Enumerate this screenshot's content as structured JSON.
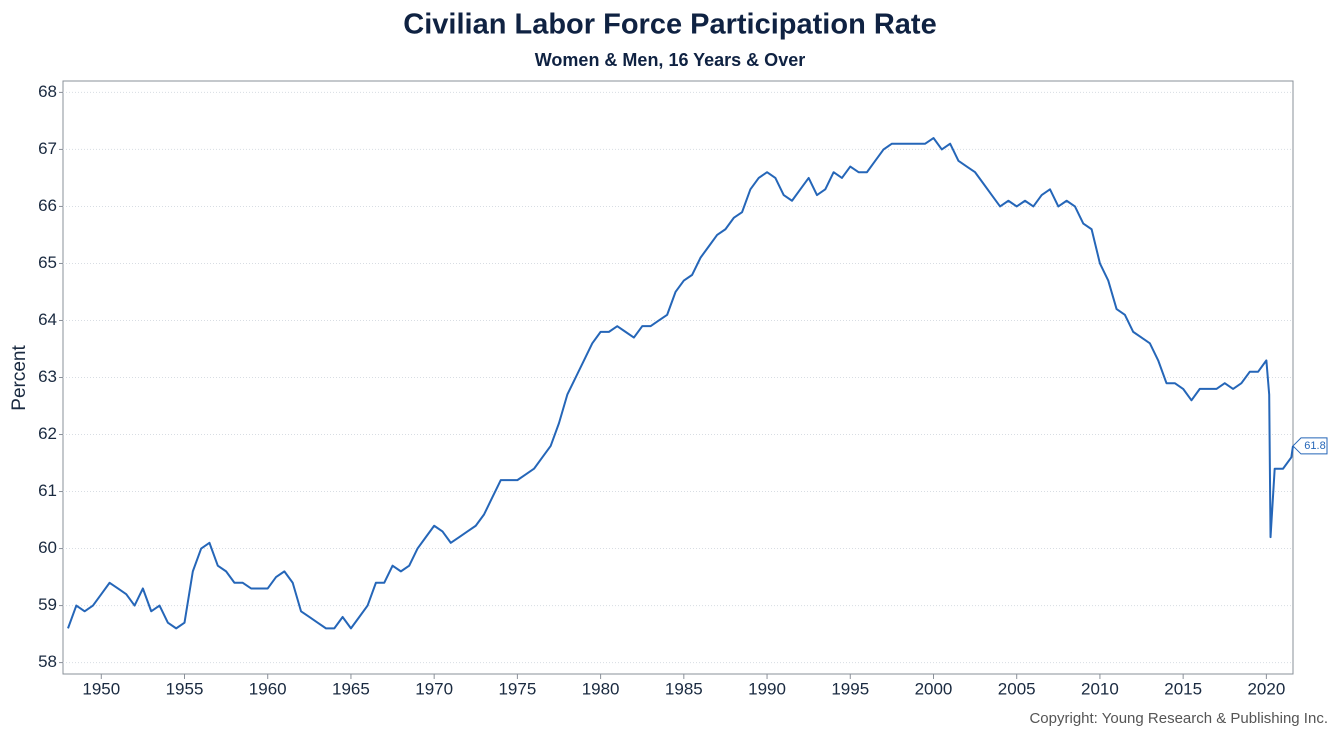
{
  "chart_data": {
    "type": "line",
    "title": "Civilian Labor Force Participation Rate",
    "subtitle": "Women & Men, 16 Years & Over",
    "y_label": "Percent",
    "copyright": "Copyright: Young Research & Publishing Inc.",
    "color": "#2566b8",
    "grid": true,
    "xlim": [
      1947.7,
      2021.6
    ],
    "ylim": [
      57.8,
      68.2
    ],
    "xticks": [
      1950,
      1955,
      1960,
      1965,
      1970,
      1975,
      1980,
      1985,
      1990,
      1995,
      2000,
      2005,
      2010,
      2015,
      2020
    ],
    "yticks": [
      58,
      59,
      60,
      61,
      62,
      63,
      64,
      65,
      66,
      67,
      68
    ],
    "x": [
      1948.0,
      1948.5,
      1949.0,
      1949.5,
      1950.0,
      1950.5,
      1951.0,
      1951.5,
      1952.0,
      1952.5,
      1953.0,
      1953.5,
      1954.0,
      1954.5,
      1955.0,
      1955.5,
      1956.0,
      1956.5,
      1957.0,
      1957.5,
      1958.0,
      1958.5,
      1959.0,
      1959.5,
      1960.0,
      1960.5,
      1961.0,
      1961.5,
      1962.0,
      1962.5,
      1963.0,
      1963.5,
      1964.0,
      1964.5,
      1965.0,
      1965.5,
      1966.0,
      1966.5,
      1967.0,
      1967.5,
      1968.0,
      1968.5,
      1969.0,
      1969.5,
      1970.0,
      1970.5,
      1971.0,
      1971.5,
      1972.0,
      1972.5,
      1973.0,
      1973.5,
      1974.0,
      1974.5,
      1975.0,
      1975.5,
      1976.0,
      1976.5,
      1977.0,
      1977.5,
      1978.0,
      1978.5,
      1979.0,
      1979.5,
      1980.0,
      1980.5,
      1981.0,
      1981.5,
      1982.0,
      1982.5,
      1983.0,
      1983.5,
      1984.0,
      1984.5,
      1985.0,
      1985.5,
      1986.0,
      1986.5,
      1987.0,
      1987.5,
      1988.0,
      1988.5,
      1989.0,
      1989.5,
      1990.0,
      1990.5,
      1991.0,
      1991.5,
      1992.0,
      1992.5,
      1993.0,
      1993.5,
      1994.0,
      1994.5,
      1995.0,
      1995.5,
      1996.0,
      1996.5,
      1997.0,
      1997.5,
      1998.0,
      1998.5,
      1999.0,
      1999.5,
      2000.0,
      2000.5,
      2001.0,
      2001.5,
      2002.0,
      2002.5,
      2003.0,
      2003.5,
      2004.0,
      2004.5,
      2005.0,
      2005.5,
      2006.0,
      2006.5,
      2007.0,
      2007.5,
      2008.0,
      2008.5,
      2009.0,
      2009.5,
      2010.0,
      2010.5,
      2011.0,
      2011.5,
      2012.0,
      2012.5,
      2013.0,
      2013.5,
      2014.0,
      2014.5,
      2015.0,
      2015.5,
      2016.0,
      2016.5,
      2017.0,
      2017.5,
      2018.0,
      2018.5,
      2019.0,
      2019.5,
      2020.0,
      2020.17,
      2020.25,
      2020.5,
      2021.0,
      2021.5,
      2021.6
    ],
    "values": [
      58.6,
      59.0,
      58.9,
      59.0,
      59.2,
      59.4,
      59.3,
      59.2,
      59.0,
      59.3,
      58.9,
      59.0,
      58.7,
      58.6,
      58.7,
      59.6,
      60.0,
      60.1,
      59.7,
      59.6,
      59.4,
      59.4,
      59.3,
      59.3,
      59.3,
      59.5,
      59.6,
      59.4,
      58.9,
      58.8,
      58.7,
      58.6,
      58.6,
      58.8,
      58.6,
      58.8,
      59.0,
      59.4,
      59.4,
      59.7,
      59.6,
      59.7,
      60.0,
      60.2,
      60.4,
      60.3,
      60.1,
      60.2,
      60.3,
      60.4,
      60.6,
      60.9,
      61.2,
      61.2,
      61.2,
      61.3,
      61.4,
      61.6,
      61.8,
      62.2,
      62.7,
      63.0,
      63.3,
      63.6,
      63.8,
      63.8,
      63.9,
      63.8,
      63.7,
      63.9,
      63.9,
      64.0,
      64.1,
      64.5,
      64.7,
      64.8,
      65.1,
      65.3,
      65.5,
      65.6,
      65.8,
      65.9,
      66.3,
      66.5,
      66.6,
      66.5,
      66.2,
      66.1,
      66.3,
      66.5,
      66.2,
      66.3,
      66.6,
      66.5,
      66.7,
      66.6,
      66.6,
      66.8,
      67.0,
      67.1,
      67.1,
      67.1,
      67.1,
      67.1,
      67.2,
      67.0,
      67.1,
      66.8,
      66.7,
      66.6,
      66.4,
      66.2,
      66.0,
      66.1,
      66.0,
      66.1,
      66.0,
      66.2,
      66.3,
      66.0,
      66.1,
      66.0,
      65.7,
      65.6,
      65.0,
      64.7,
      64.2,
      64.1,
      63.8,
      63.7,
      63.6,
      63.3,
      62.9,
      62.9,
      62.8,
      62.6,
      62.8,
      62.8,
      62.8,
      62.9,
      62.8,
      62.9,
      63.1,
      63.1,
      63.3,
      62.7,
      60.2,
      61.4,
      61.4,
      61.6,
      61.8
    ]
  }
}
